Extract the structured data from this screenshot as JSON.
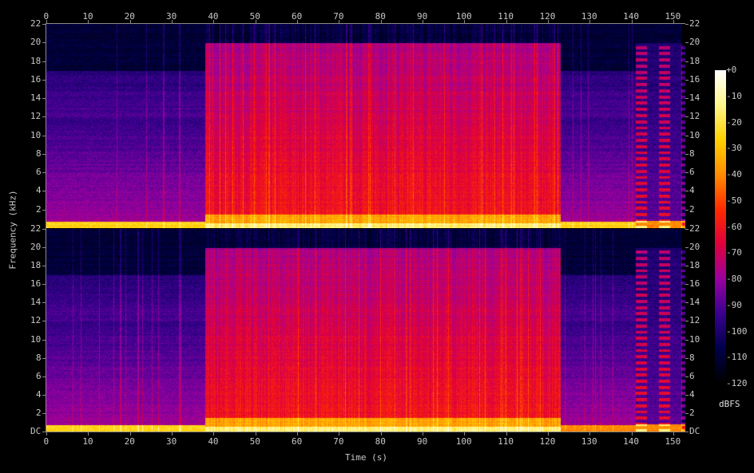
{
  "chart_data": {
    "type": "heatmap",
    "subtype": "spectrogram",
    "xlabel": "Time (s)",
    "ylabel": "Frequency (kHz)",
    "xlim": [
      0,
      153
    ],
    "ylim": [
      0,
      22
    ],
    "x_ticks": [
      "0",
      "10",
      "20",
      "30",
      "40",
      "50",
      "60",
      "70",
      "80",
      "90",
      "100",
      "110",
      "120",
      "130",
      "140",
      "150"
    ],
    "y_ticks_top": [
      "22",
      "20",
      "18",
      "16",
      "14",
      "12",
      "10",
      "8",
      "6",
      "4",
      "2"
    ],
    "y_ticks_bottom": [
      "22",
      "20",
      "18",
      "16",
      "14",
      "12",
      "10",
      "8",
      "6",
      "4",
      "2",
      "DC"
    ],
    "channels": 2,
    "colorbar": {
      "unit": "dBFS",
      "range": [
        -120,
        0
      ],
      "ticks": [
        "+0",
        "-10",
        "-20",
        "-30",
        "-40",
        "-50",
        "-60",
        "-70",
        "-80",
        "-90",
        "-100",
        "-110",
        "-120"
      ],
      "colors": [
        "#000000",
        "#00004a",
        "#3a0090",
        "#9a00a0",
        "#e0003c",
        "#ff2a00",
        "#ff8c00",
        "#ffd000",
        "#fff68a",
        "#ffffff"
      ]
    },
    "segments": [
      {
        "start": 0,
        "end": 38,
        "level": "quiet",
        "upper_freq_khz": 17
      },
      {
        "start": 38,
        "end": 123,
        "level": "loud",
        "upper_freq_khz": 20
      },
      {
        "start": 123,
        "end": 141,
        "level": "quiet",
        "upper_freq_khz": 17
      },
      {
        "start": 141,
        "end": 153,
        "level": "moderate",
        "upper_freq_khz": 20
      }
    ]
  }
}
